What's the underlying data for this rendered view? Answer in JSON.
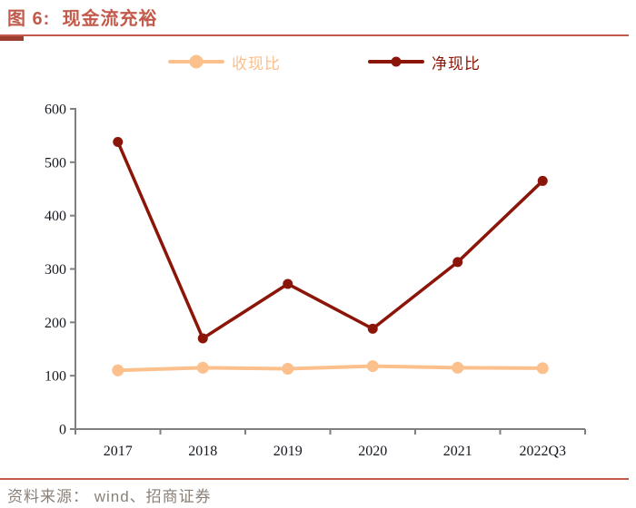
{
  "header": {
    "title": "图 6:  现金流充裕"
  },
  "accent": {
    "title_color": "#c25b4b",
    "rule_color": "#c05a4b",
    "accent_dark": "#9c3d30",
    "source_color": "#8a8078"
  },
  "chart_data": {
    "type": "line",
    "title": "现金流充裕",
    "categories": [
      "2017",
      "2018",
      "2019",
      "2020",
      "2021",
      "2022Q3"
    ],
    "series": [
      {
        "name": "收现比",
        "color": "#fbc08c",
        "values": [
          110,
          115,
          113,
          118,
          115,
          114
        ],
        "line_width": 4,
        "marker_radius": 6.5,
        "legend_dot": 15
      },
      {
        "name": "净现比",
        "color": "#8b1508",
        "values": [
          538,
          170,
          272,
          188,
          313,
          465
        ],
        "line_width": 3.5,
        "marker_radius": 5.5,
        "legend_dot": 11
      }
    ],
    "xlabel": "",
    "ylabel": "",
    "ylim": [
      0,
      600
    ],
    "yticks": [
      0,
      100,
      200,
      300,
      400,
      500,
      600
    ],
    "grid": false,
    "legend_position": "top",
    "axis_color": "#7f7f7f",
    "tick_label_color": "#14181f"
  },
  "footer": {
    "source": "资料来源： wind、招商证券"
  }
}
